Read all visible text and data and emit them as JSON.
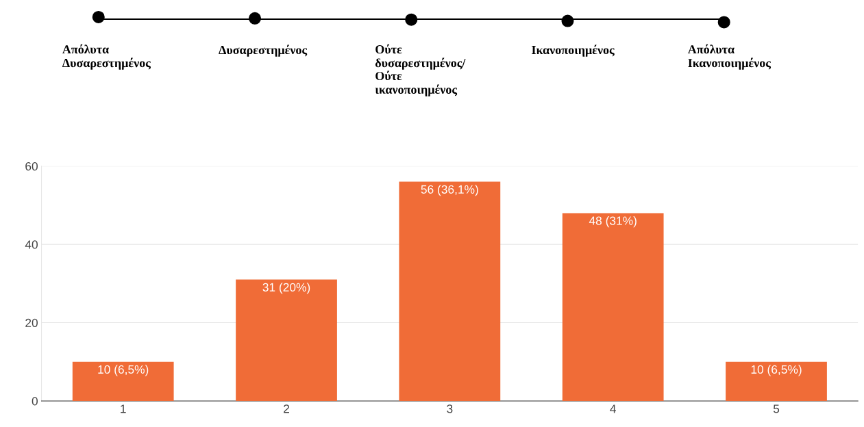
{
  "chart_data": {
    "type": "bar",
    "categories": [
      "1",
      "2",
      "3",
      "4",
      "5"
    ],
    "values": [
      10,
      31,
      56,
      48,
      10
    ],
    "value_labels": [
      "10 (6,5%)",
      "31 (20%)",
      "56 (36,1%)",
      "48 (31%)",
      "10 (6,5%)"
    ],
    "color": "#f06c37",
    "ylim": [
      0,
      60
    ],
    "yticks": [
      0,
      20,
      40,
      60
    ],
    "grid": "y",
    "annotations": [
      "Απόλυτα\nΔυσαρεστημένος",
      "Δυσαρεστημένος",
      "Ούτε\nδυσαρεστημένος/\nΟύτε\nικανοποιημένος",
      "Ικανοποιημένος",
      "Απόλυτα\nΙκανοποιημένος"
    ]
  }
}
